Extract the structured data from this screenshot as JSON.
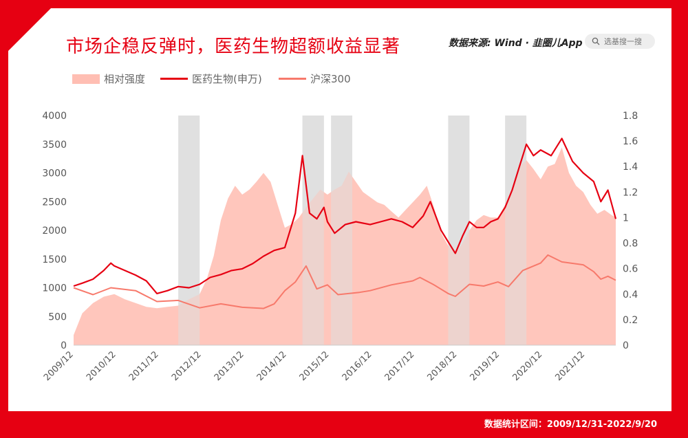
{
  "title": "市场企稳反弹时，医药生物超额收益显著",
  "source": "数据来源: Wind · 韭圈儿App",
  "search": {
    "label": "选基搜一搜",
    "icon": "search-icon"
  },
  "footer": "数据统计区间：2009/12/31-2022/9/20",
  "colors": {
    "brand": "#e60012",
    "area": "#ffbeb3",
    "hs300": "#f7796b",
    "shade": "#dcdcdc"
  },
  "legend": [
    "相对强度",
    "医药生物(申万)",
    "沪深300"
  ],
  "chart_data": {
    "type": "line",
    "title": "市场企稳反弹时，医药生物超额收益显著",
    "x_ticks": [
      "2009/12",
      "2010/12",
      "2011/12",
      "2012/12",
      "2013/12",
      "2014/12",
      "2015/12",
      "2016/12",
      "2017/12",
      "2018/12",
      "2019/12",
      "2020/12",
      "2021/12"
    ],
    "x_range": [
      "2009-12-31",
      "2022-09-20"
    ],
    "y_left": {
      "range": [
        0,
        4000
      ],
      "ticks": [
        "4000",
        "3500",
        "3000",
        "2500",
        "2000",
        "1500",
        "1000",
        "500",
        "0"
      ]
    },
    "y_right": {
      "range": [
        0,
        1.8
      ],
      "ticks": [
        "1.8",
        "1.6",
        "1.4",
        "1.2",
        "1",
        "0.8",
        "0.6",
        "0.4",
        "0.2",
        "0"
      ]
    },
    "shaded_periods": [
      [
        "2012-06",
        "2012-12"
      ],
      [
        "2015-05",
        "2015-11"
      ],
      [
        "2016-01",
        "2016-07"
      ],
      [
        "2018-10",
        "2019-04"
      ],
      [
        "2020-02",
        "2020-08"
      ]
    ],
    "series": [
      {
        "name": "相对强度",
        "type": "area",
        "axis": "right",
        "points": [
          [
            "2009-12-31",
            0.08
          ],
          [
            "2010-03",
            0.25
          ],
          [
            "2010-06",
            0.33
          ],
          [
            "2010-09",
            0.38
          ],
          [
            "2010-12",
            0.4
          ],
          [
            "2011-03",
            0.36
          ],
          [
            "2011-06",
            0.33
          ],
          [
            "2011-09",
            0.3
          ],
          [
            "2011-12",
            0.29
          ],
          [
            "2012-03",
            0.3
          ],
          [
            "2012-06",
            0.31
          ],
          [
            "2012-09",
            0.36
          ],
          [
            "2012-12",
            0.4
          ],
          [
            "2013-02",
            0.52
          ],
          [
            "2013-04",
            0.7
          ],
          [
            "2013-06",
            0.98
          ],
          [
            "2013-08",
            1.15
          ],
          [
            "2013-10",
            1.25
          ],
          [
            "2013-12",
            1.18
          ],
          [
            "2014-02",
            1.22
          ],
          [
            "2014-04",
            1.28
          ],
          [
            "2014-06",
            1.35
          ],
          [
            "2014-08",
            1.28
          ],
          [
            "2014-10",
            1.1
          ],
          [
            "2014-12",
            0.92
          ],
          [
            "2015-02",
            0.95
          ],
          [
            "2015-04",
            1.0
          ],
          [
            "2015-06",
            1.08
          ],
          [
            "2015-08",
            1.15
          ],
          [
            "2015-10",
            1.22
          ],
          [
            "2015-12",
            1.18
          ],
          [
            "2016-02",
            1.22
          ],
          [
            "2016-04",
            1.25
          ],
          [
            "2016-06",
            1.36
          ],
          [
            "2016-08",
            1.28
          ],
          [
            "2016-10",
            1.2
          ],
          [
            "2016-12",
            1.16
          ],
          [
            "2017-02",
            1.12
          ],
          [
            "2017-04",
            1.1
          ],
          [
            "2017-06",
            1.05
          ],
          [
            "2017-08",
            1.0
          ],
          [
            "2017-10",
            1.06
          ],
          [
            "2017-12",
            1.12
          ],
          [
            "2018-02",
            1.18
          ],
          [
            "2018-04",
            1.25
          ],
          [
            "2018-06",
            1.08
          ],
          [
            "2018-08",
            0.88
          ],
          [
            "2018-10",
            0.78
          ],
          [
            "2018-12",
            0.72
          ],
          [
            "2019-02",
            0.8
          ],
          [
            "2019-04",
            0.9
          ],
          [
            "2019-06",
            0.98
          ],
          [
            "2019-08",
            1.02
          ],
          [
            "2019-10",
            1.0
          ],
          [
            "2019-12",
            1.0
          ],
          [
            "2020-02",
            1.1
          ],
          [
            "2020-04",
            1.22
          ],
          [
            "2020-06",
            1.4
          ],
          [
            "2020-08",
            1.45
          ],
          [
            "2020-10",
            1.38
          ],
          [
            "2020-12",
            1.3
          ],
          [
            "2021-02",
            1.4
          ],
          [
            "2021-04",
            1.42
          ],
          [
            "2021-06",
            1.55
          ],
          [
            "2021-08",
            1.35
          ],
          [
            "2021-10",
            1.25
          ],
          [
            "2021-12",
            1.2
          ],
          [
            "2022-02",
            1.1
          ],
          [
            "2022-04",
            1.03
          ],
          [
            "2022-06",
            1.06
          ],
          [
            "2022-08",
            1.02
          ],
          [
            "2022-09-20",
            1.0
          ]
        ]
      },
      {
        "name": "医药生物(申万)",
        "type": "line",
        "axis": "left",
        "points": [
          [
            "2009-12-31",
            1030
          ],
          [
            "2010-03",
            1080
          ],
          [
            "2010-06",
            1150
          ],
          [
            "2010-09",
            1300
          ],
          [
            "2010-11",
            1430
          ],
          [
            "2010-12",
            1380
          ],
          [
            "2011-03",
            1300
          ],
          [
            "2011-06",
            1220
          ],
          [
            "2011-09",
            1120
          ],
          [
            "2011-12",
            900
          ],
          [
            "2012-03",
            950
          ],
          [
            "2012-06",
            1020
          ],
          [
            "2012-09",
            1000
          ],
          [
            "2012-12",
            1060
          ],
          [
            "2013-03",
            1180
          ],
          [
            "2013-06",
            1230
          ],
          [
            "2013-09",
            1300
          ],
          [
            "2013-12",
            1330
          ],
          [
            "2014-03",
            1420
          ],
          [
            "2014-06",
            1550
          ],
          [
            "2014-09",
            1650
          ],
          [
            "2014-12",
            1700
          ],
          [
            "2015-03",
            2300
          ],
          [
            "2015-05",
            3300
          ],
          [
            "2015-07",
            2300
          ],
          [
            "2015-09",
            2200
          ],
          [
            "2015-11",
            2400
          ],
          [
            "2015-12",
            2150
          ],
          [
            "2016-02",
            1950
          ],
          [
            "2016-05",
            2100
          ],
          [
            "2016-08",
            2150
          ],
          [
            "2016-12",
            2100
          ],
          [
            "2017-03",
            2150
          ],
          [
            "2017-06",
            2200
          ],
          [
            "2017-09",
            2150
          ],
          [
            "2017-12",
            2050
          ],
          [
            "2018-03",
            2250
          ],
          [
            "2018-05",
            2500
          ],
          [
            "2018-08",
            2000
          ],
          [
            "2018-10",
            1800
          ],
          [
            "2018-12",
            1600
          ],
          [
            "2019-02",
            1900
          ],
          [
            "2019-04",
            2150
          ],
          [
            "2019-06",
            2050
          ],
          [
            "2019-08",
            2050
          ],
          [
            "2019-10",
            2150
          ],
          [
            "2019-12",
            2200
          ],
          [
            "2020-02",
            2400
          ],
          [
            "2020-04",
            2700
          ],
          [
            "2020-06",
            3100
          ],
          [
            "2020-08",
            3500
          ],
          [
            "2020-10",
            3300
          ],
          [
            "2020-12",
            3400
          ],
          [
            "2021-03",
            3300
          ],
          [
            "2021-06",
            3600
          ],
          [
            "2021-09",
            3200
          ],
          [
            "2021-12",
            3000
          ],
          [
            "2022-03",
            2850
          ],
          [
            "2022-05",
            2500
          ],
          [
            "2022-07",
            2700
          ],
          [
            "2022-09-20",
            2200
          ]
        ]
      },
      {
        "name": "沪深300",
        "type": "line",
        "axis": "left",
        "points": [
          [
            "2009-12-31",
            1000
          ],
          [
            "2010-06",
            880
          ],
          [
            "2010-11",
            1000
          ],
          [
            "2011-06",
            950
          ],
          [
            "2011-12",
            760
          ],
          [
            "2012-06",
            780
          ],
          [
            "2012-12",
            650
          ],
          [
            "2013-06",
            720
          ],
          [
            "2013-12",
            660
          ],
          [
            "2014-06",
            640
          ],
          [
            "2014-09",
            720
          ],
          [
            "2014-12",
            950
          ],
          [
            "2015-03",
            1100
          ],
          [
            "2015-06",
            1380
          ],
          [
            "2015-09",
            980
          ],
          [
            "2015-12",
            1050
          ],
          [
            "2016-03",
            880
          ],
          [
            "2016-09",
            920
          ],
          [
            "2016-12",
            950
          ],
          [
            "2017-06",
            1050
          ],
          [
            "2017-12",
            1120
          ],
          [
            "2018-02",
            1180
          ],
          [
            "2018-06",
            1050
          ],
          [
            "2018-10",
            900
          ],
          [
            "2018-12",
            850
          ],
          [
            "2019-04",
            1060
          ],
          [
            "2019-08",
            1030
          ],
          [
            "2019-12",
            1100
          ],
          [
            "2020-03",
            1020
          ],
          [
            "2020-07",
            1300
          ],
          [
            "2020-12",
            1430
          ],
          [
            "2021-02",
            1570
          ],
          [
            "2021-06",
            1450
          ],
          [
            "2021-12",
            1400
          ],
          [
            "2022-03",
            1280
          ],
          [
            "2022-05",
            1150
          ],
          [
            "2022-07",
            1200
          ],
          [
            "2022-09-20",
            1130
          ]
        ]
      }
    ]
  }
}
